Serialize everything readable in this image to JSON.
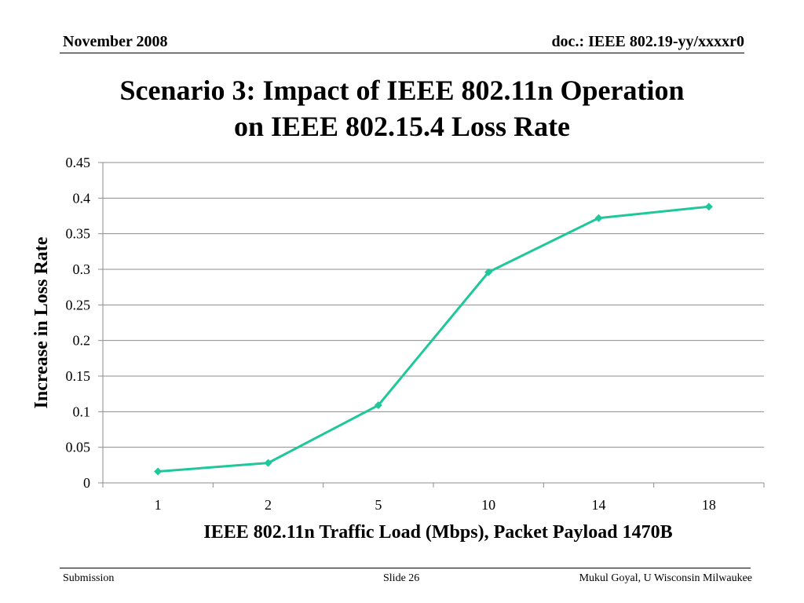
{
  "header": {
    "date": "November 2008",
    "doc_id": "doc.: IEEE 802.19-yy/xxxxr0"
  },
  "slide": {
    "title_line1": "Scenario 3: Impact of IEEE 802.11n Operation",
    "title_line2": "on IEEE 802.15.4 Loss Rate"
  },
  "chart_data": {
    "type": "line",
    "categories": [
      "1",
      "2",
      "5",
      "10",
      "14",
      "18"
    ],
    "series": [
      {
        "values": [
          0.016,
          0.028,
          0.109,
          0.296,
          0.372,
          0.388
        ],
        "color": "#1fc79a"
      }
    ],
    "xlabel": "IEEE 802.11n Traffic Load (Mbps), Packet Payload 1470B",
    "ylabel": "Increase in Loss Rate",
    "ylim": [
      0,
      0.45
    ],
    "yticks": [
      "0",
      "0.05",
      "0.1",
      "0.15",
      "0.2",
      "0.25",
      "0.3",
      "0.35",
      "0.4",
      "0.45"
    ],
    "grid": true,
    "marker": "diamond"
  },
  "footer": {
    "left": "Submission",
    "center": "Slide 26",
    "right": "Mukul Goyal, U Wisconsin Milwaukee"
  }
}
